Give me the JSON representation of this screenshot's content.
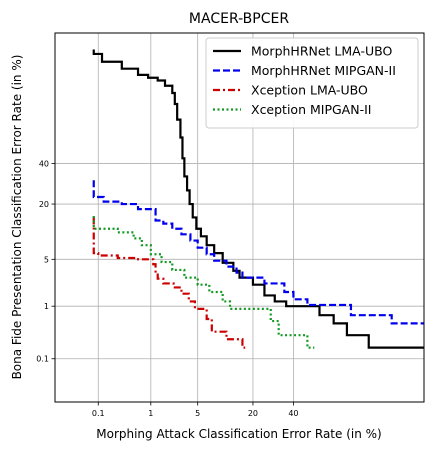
{
  "chart_data": {
    "type": "line",
    "title": "MACER-BPCER",
    "xlabel": "Morphing Attack Classification Error Rate (in %)",
    "ylabel": "Bona Fide Presentation Classification Error Rate (in %)",
    "x_scale": "probit",
    "y_scale": "probit",
    "xlim": [
      0.01,
      95
    ],
    "ylim": [
      0.01,
      95
    ],
    "x_ticks": [
      0.1,
      1,
      5,
      20,
      40
    ],
    "y_ticks": [
      0.1,
      1,
      5,
      20,
      40
    ],
    "x_tick_labels": [
      "0.1",
      "1",
      "5",
      "20",
      "40"
    ],
    "y_tick_labels": [
      "0.1",
      "1",
      "5",
      "20",
      "40"
    ],
    "grid": true,
    "legend_position": "top-right",
    "series": [
      {
        "name": "MorphHRNet LMA-UBO",
        "color": "#000000",
        "dash": "solid",
        "points": [
          [
            0.08,
            92
          ],
          [
            0.08,
            91
          ],
          [
            0.12,
            91
          ],
          [
            0.12,
            89
          ],
          [
            0.3,
            89
          ],
          [
            0.3,
            87
          ],
          [
            0.6,
            87
          ],
          [
            0.6,
            85
          ],
          [
            0.9,
            85
          ],
          [
            0.9,
            84
          ],
          [
            1.3,
            84
          ],
          [
            1.3,
            83
          ],
          [
            1.7,
            83
          ],
          [
            1.7,
            81
          ],
          [
            2.2,
            81
          ],
          [
            2.2,
            78
          ],
          [
            2.4,
            78
          ],
          [
            2.4,
            73
          ],
          [
            2.6,
            73
          ],
          [
            2.6,
            65
          ],
          [
            2.9,
            65
          ],
          [
            2.9,
            55
          ],
          [
            3.1,
            55
          ],
          [
            3.1,
            43
          ],
          [
            3.3,
            43
          ],
          [
            3.3,
            33
          ],
          [
            3.6,
            33
          ],
          [
            3.6,
            26
          ],
          [
            3.9,
            26
          ],
          [
            3.9,
            20
          ],
          [
            4.3,
            20
          ],
          [
            4.3,
            15
          ],
          [
            4.8,
            15
          ],
          [
            4.8,
            11.5
          ],
          [
            5.5,
            11.5
          ],
          [
            5.5,
            9.5
          ],
          [
            6.5,
            9.5
          ],
          [
            6.5,
            7.5
          ],
          [
            8,
            7.5
          ],
          [
            8,
            6
          ],
          [
            10,
            6
          ],
          [
            10,
            4.5
          ],
          [
            13,
            4.5
          ],
          [
            13,
            3.5
          ],
          [
            15,
            3.5
          ],
          [
            15,
            2.8
          ],
          [
            20,
            2.8
          ],
          [
            20,
            2.2
          ],
          [
            25,
            2.2
          ],
          [
            25,
            1.5
          ],
          [
            30,
            1.5
          ],
          [
            30,
            1.2
          ],
          [
            36,
            1.2
          ],
          [
            36,
            1.0
          ],
          [
            55,
            1.0
          ],
          [
            55,
            0.7
          ],
          [
            63,
            0.7
          ],
          [
            63,
            0.5
          ],
          [
            70,
            0.5
          ],
          [
            70,
            0.3
          ],
          [
            80,
            0.3
          ],
          [
            80,
            0.17
          ],
          [
            95,
            0.17
          ]
        ]
      },
      {
        "name": "MorphHRNet MIPGAN-II",
        "color": "#0000ee",
        "dash": "dashed",
        "points": [
          [
            0.08,
            31
          ],
          [
            0.08,
            23
          ],
          [
            0.13,
            23
          ],
          [
            0.13,
            21
          ],
          [
            0.3,
            21
          ],
          [
            0.3,
            20
          ],
          [
            0.6,
            20
          ],
          [
            0.6,
            18
          ],
          [
            1.2,
            18
          ],
          [
            1.2,
            14
          ],
          [
            1.6,
            14
          ],
          [
            1.6,
            13
          ],
          [
            2.2,
            13
          ],
          [
            2.2,
            11.5
          ],
          [
            3,
            11.5
          ],
          [
            3,
            10
          ],
          [
            4,
            10
          ],
          [
            4,
            8.5
          ],
          [
            5,
            8.5
          ],
          [
            5,
            7
          ],
          [
            6.5,
            7
          ],
          [
            6.5,
            5.8
          ],
          [
            8,
            5.8
          ],
          [
            8,
            4.8
          ],
          [
            11,
            4.8
          ],
          [
            11,
            4
          ],
          [
            14,
            4
          ],
          [
            14,
            3.3
          ],
          [
            16,
            3.3
          ],
          [
            16,
            2.8
          ],
          [
            25,
            2.8
          ],
          [
            25,
            2.3
          ],
          [
            35,
            2.3
          ],
          [
            35,
            1.7
          ],
          [
            40,
            1.7
          ],
          [
            40,
            1.3
          ],
          [
            48,
            1.3
          ],
          [
            48,
            1.05
          ],
          [
            72,
            1.05
          ],
          [
            72,
            0.7
          ],
          [
            88,
            0.7
          ],
          [
            88,
            0.5
          ],
          [
            95,
            0.5
          ]
        ]
      },
      {
        "name": "Xception LMA-UBO",
        "color": "#cc0000",
        "dash": "dashdot",
        "points": [
          [
            0.08,
            15
          ],
          [
            0.08,
            6
          ],
          [
            0.1,
            6
          ],
          [
            0.1,
            5.6
          ],
          [
            0.25,
            5.6
          ],
          [
            0.25,
            5.2
          ],
          [
            0.6,
            5.2
          ],
          [
            0.6,
            5
          ],
          [
            1.1,
            5
          ],
          [
            1.1,
            4.3
          ],
          [
            1.2,
            4.3
          ],
          [
            1.2,
            3.3
          ],
          [
            1.3,
            3.3
          ],
          [
            1.3,
            2.7
          ],
          [
            1.6,
            2.7
          ],
          [
            1.6,
            2.3
          ],
          [
            2.3,
            2.3
          ],
          [
            2.3,
            2.0
          ],
          [
            3,
            2.0
          ],
          [
            3,
            1.6
          ],
          [
            3.8,
            1.6
          ],
          [
            3.8,
            1.2
          ],
          [
            4.6,
            1.2
          ],
          [
            4.6,
            0.9
          ],
          [
            6.5,
            0.9
          ],
          [
            6.5,
            0.6
          ],
          [
            7.5,
            0.6
          ],
          [
            7.5,
            0.35
          ],
          [
            11,
            0.35
          ],
          [
            11,
            0.25
          ],
          [
            16,
            0.25
          ],
          [
            16,
            0.17
          ],
          [
            17,
            0.17
          ]
        ]
      },
      {
        "name": "Xception MIPGAN-II",
        "color": "#119922",
        "dash": "dotted",
        "points": [
          [
            0.08,
            15.5
          ],
          [
            0.08,
            11.5
          ],
          [
            0.25,
            11.5
          ],
          [
            0.25,
            10.5
          ],
          [
            0.5,
            10.5
          ],
          [
            0.5,
            9
          ],
          [
            0.7,
            9
          ],
          [
            0.7,
            7.5
          ],
          [
            1.0,
            7.5
          ],
          [
            1.0,
            5.8
          ],
          [
            1.5,
            5.8
          ],
          [
            1.5,
            4.6
          ],
          [
            2.2,
            4.6
          ],
          [
            2.2,
            3.6
          ],
          [
            3.3,
            3.6
          ],
          [
            3.3,
            2.8
          ],
          [
            5,
            2.8
          ],
          [
            5,
            2.2
          ],
          [
            7,
            2.2
          ],
          [
            7,
            1.7
          ],
          [
            10,
            1.7
          ],
          [
            10,
            1.2
          ],
          [
            12,
            1.2
          ],
          [
            12,
            0.9
          ],
          [
            28,
            0.9
          ],
          [
            28,
            0.55
          ],
          [
            32,
            0.55
          ],
          [
            32,
            0.3
          ],
          [
            48,
            0.3
          ],
          [
            48,
            0.17
          ],
          [
            52,
            0.17
          ]
        ]
      }
    ]
  }
}
